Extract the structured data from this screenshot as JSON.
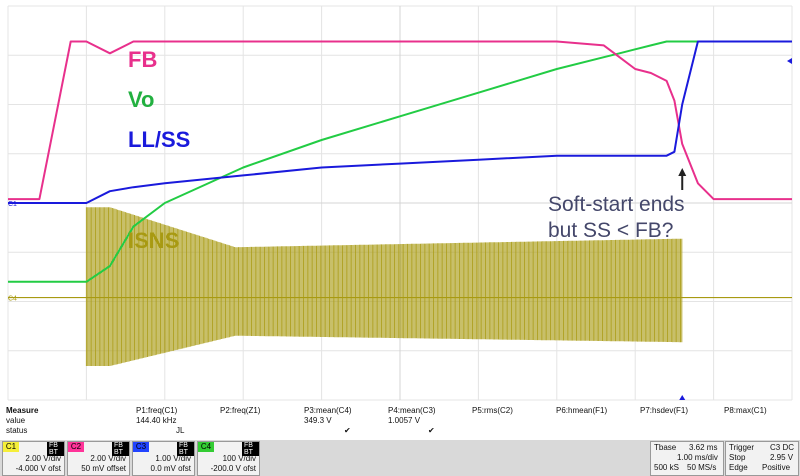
{
  "chart_data": {
    "type": "line",
    "title": "",
    "xlabel": "",
    "ylabel": "",
    "x": [
      0,
      4,
      8,
      10,
      13,
      16,
      20,
      30,
      40,
      50,
      60,
      70,
      76,
      78,
      80,
      82,
      84,
      85,
      86,
      88,
      90,
      92,
      94,
      96,
      98,
      100
    ],
    "xlim": [
      0,
      100
    ],
    "ylim": [
      0,
      100
    ],
    "grid": true,
    "series": [
      {
        "name": "FB",
        "color": "#e8308c",
        "values": [
          51,
          51,
          91,
          91,
          88,
          91,
          91,
          91,
          91,
          91,
          91,
          91,
          90,
          87,
          84,
          83,
          81,
          76,
          65,
          55,
          51,
          51,
          51,
          51,
          51,
          51
        ]
      },
      {
        "name": "Vo",
        "color": "#22cc44",
        "values": [
          30,
          30,
          30,
          30,
          34,
          44,
          50,
          59,
          66,
          72,
          78,
          84,
          87,
          88,
          89,
          90,
          91,
          91,
          91,
          91,
          91,
          91,
          91,
          91,
          91,
          91
        ]
      },
      {
        "name": "LL/SS",
        "color": "#1a1adc",
        "values": [
          50,
          50,
          50,
          50,
          53,
          54,
          55,
          57,
          59,
          60,
          61,
          62,
          62,
          62,
          62,
          62,
          62,
          63,
          75,
          91,
          91,
          91,
          91,
          91,
          91,
          91
        ]
      },
      {
        "name": "ISNS",
        "color": "#a89a12",
        "values": [
          26,
          26,
          26,
          26,
          26,
          26,
          26,
          26,
          26,
          26,
          26,
          26,
          26,
          26,
          26,
          26,
          26,
          26,
          26,
          26,
          26,
          26,
          26,
          26,
          26,
          26
        ]
      }
    ],
    "annotations": [
      "Soft-start ends",
      "but SS < FB?"
    ]
  },
  "labels": {
    "fb": "FB",
    "vo": "Vo",
    "llss": "LL/SS",
    "isns": "ISNS",
    "annot_line1": "Soft-start ends",
    "annot_line2": "but SS < FB?",
    "c1_marker": "C1",
    "c4_marker": "C4"
  },
  "measure": {
    "row_labels": [
      "Measure",
      "value",
      "status"
    ],
    "params": [
      {
        "name": "P1:freq(C1)",
        "value": "144.40 kHz",
        "status": "JL"
      },
      {
        "name": "P2:freq(Z1)",
        "value": "",
        "status": ""
      },
      {
        "name": "P3:mean(C4)",
        "value": "349.3 V",
        "status": "✔"
      },
      {
        "name": "P4:mean(C3)",
        "value": "1.0057 V",
        "status": "✔"
      },
      {
        "name": "P5:rms(C2)",
        "value": "",
        "status": ""
      },
      {
        "name": "P6:hmean(F1)",
        "value": "",
        "status": ""
      },
      {
        "name": "P7:hsdev(F1)",
        "value": "",
        "status": ""
      },
      {
        "name": "P8:max(C1)",
        "value": "",
        "status": ""
      }
    ]
  },
  "channels": [
    {
      "tag": "C1",
      "color": "#f5ee3a",
      "scale": "2.00 V/div",
      "offset": "-4.000 V ofst",
      "icons": "FB BT"
    },
    {
      "tag": "C2",
      "color": "#ff3399",
      "scale": "2.00 V/div",
      "offset": "50 mV offset",
      "icons": "FB BT"
    },
    {
      "tag": "C3",
      "color": "#2244ff",
      "scale": "1.00 V/div",
      "offset": "0.0 mV ofst",
      "icons": "FB BT"
    },
    {
      "tag": "C4",
      "color": "#33cc33",
      "scale": "100 V/div",
      "offset": "-200.0 V ofst",
      "icons": "FB BT"
    }
  ],
  "timebase": {
    "label": "Tbase",
    "delay": "3.62 ms",
    "div": "1.00 ms/div",
    "samples": "500 kS",
    "rate": "50 MS/s"
  },
  "trigger": {
    "label": "Trigger",
    "channels": "C3 DC",
    "mode": "Stop",
    "level": "2.95 V",
    "type": "Edge",
    "slope": "Positive"
  }
}
